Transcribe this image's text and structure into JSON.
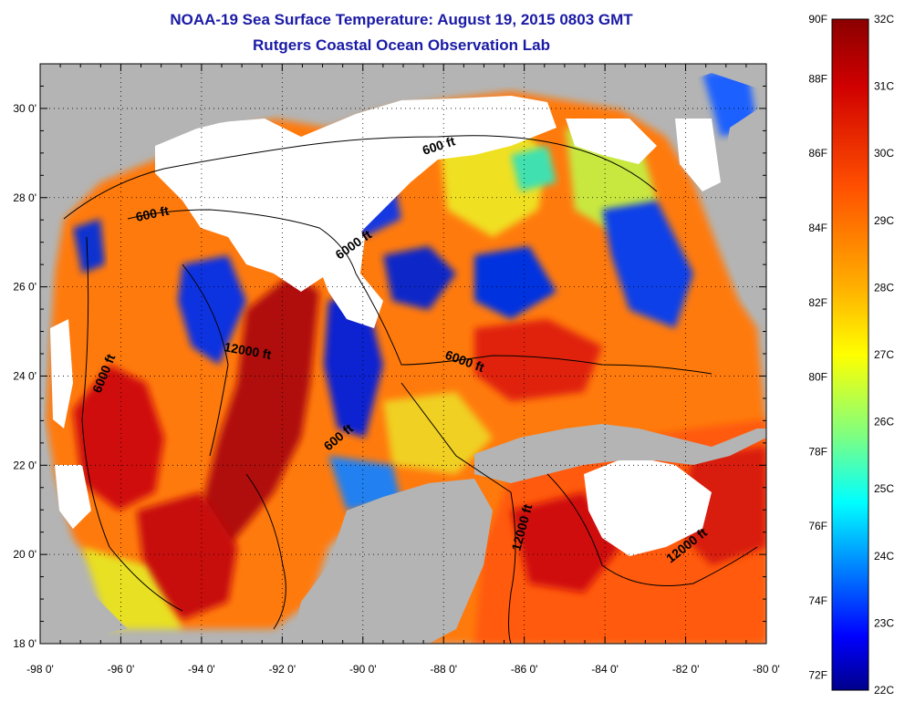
{
  "header": {
    "title": "NOAA-19 Sea Surface Temperature:  August 19, 2015 0803 GMT",
    "subtitle": "Rutgers Coastal Ocean Observation Lab"
  },
  "map": {
    "lon_labels": [
      "-98 0'",
      "-96 0'",
      "-94 0'",
      "-92 0'",
      "-90 0'",
      "-88 0'",
      "-86 0'",
      "-84 0'",
      "-82 0'",
      "-80 0'"
    ],
    "lat_labels": [
      "30 0'",
      "28 0'",
      "26 0'",
      "24 0'",
      "22 0'",
      "20 0'",
      "18 0'"
    ],
    "lon_range": [
      -98,
      -80
    ],
    "lat_range": [
      18,
      31
    ],
    "land_color": "#b4b4b4",
    "cloud_color": "#ffffff",
    "contour_labels": [
      "600 ft",
      "600 ft",
      "6000 ft",
      "12000 ft",
      "6000 ft",
      "6000 ft",
      "600 ft",
      "12000 ft",
      "12000 ft"
    ]
  },
  "colorbar": {
    "f_labels": [
      "90F",
      "88F",
      "86F",
      "84F",
      "82F",
      "80F",
      "78F",
      "76F",
      "74F",
      "72F"
    ],
    "c_labels": [
      "32C",
      "31C",
      "30C",
      "29C",
      "28C",
      "27C",
      "26C",
      "25C",
      "24C",
      "23C",
      "22C"
    ],
    "range_c": [
      22,
      32
    ],
    "colors": [
      "#8b0000",
      "#ff0000",
      "#ff8000",
      "#ffff00",
      "#00ffff",
      "#0000ff",
      "#00008b"
    ]
  }
}
